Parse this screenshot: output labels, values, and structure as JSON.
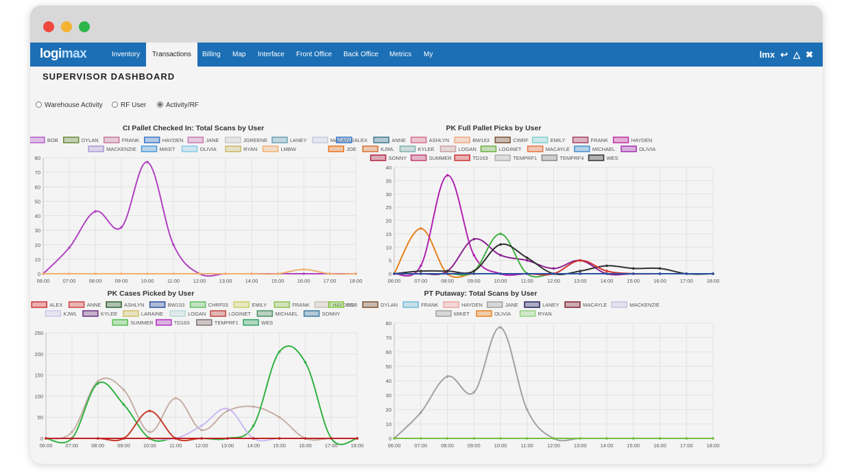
{
  "nav": {
    "logo_a": "logi",
    "logo_b": "max",
    "items": [
      "Inventory",
      "Transactions",
      "Billing",
      "Map",
      "Interface",
      "Front Office",
      "Back Office",
      "Metrics",
      "My"
    ],
    "active_index": 1,
    "user": "lmx",
    "icons": [
      "logout-icon",
      "warning-icon",
      "close-icon"
    ]
  },
  "page": {
    "title": "SUPERVISOR DASHBOARD",
    "radios": [
      {
        "label": "Warehouse Activity",
        "selected": false
      },
      {
        "label": "RF User",
        "selected": false
      },
      {
        "label": "Activity/RF",
        "selected": true
      }
    ]
  },
  "chart_data": [
    {
      "type": "line",
      "title": "CI   Pallet Checked In: Total Scans by User",
      "x": [
        "06:00",
        "07:00",
        "08:00",
        "09:00",
        "10:00",
        "11:00",
        "12:00",
        "13:00",
        "14:00",
        "15:00",
        "16:00",
        "17:00",
        "18:00"
      ],
      "ylim": [
        0,
        80
      ],
      "yticks": [
        0,
        10,
        20,
        30,
        40,
        50,
        60,
        70,
        80
      ],
      "legend": [
        "BOB",
        "DYLAN",
        "FRANK",
        "HAYDEN",
        "JANE",
        "JGREENE",
        "LANEY",
        "MACAYLE",
        "MACKENZIE",
        "MIKET",
        "OLIVIA",
        "RYAN",
        "LMBW"
      ],
      "legend_colors": [
        "#b45cc8",
        "#6b8a3a",
        "#c87a9a",
        "#3a78c8",
        "#c87ab0",
        "#c8c8c8",
        "#6aa0b8",
        "#c8c8e0",
        "#a898d8",
        "#4a98d8",
        "#88c8e8",
        "#c8b868",
        "#f0b070"
      ],
      "series": [
        {
          "name": "BOB",
          "color": "#b040c0",
          "values": [
            0,
            18,
            43,
            32,
            77,
            20,
            0,
            0,
            0,
            0,
            0,
            0,
            0
          ]
        },
        {
          "name": "LMBW",
          "color": "#f0b070",
          "values": [
            0,
            0,
            0,
            0,
            0,
            0,
            0,
            0,
            0,
            0,
            3,
            0,
            0
          ]
        }
      ]
    },
    {
      "type": "line",
      "title": "PK Full Pallet Picks by User",
      "x": [
        "06:00",
        "07:00",
        "08:00",
        "09:00",
        "10:00",
        "11:00",
        "12:00",
        "13:00",
        "14:00",
        "15:00",
        "16:00",
        "17:00",
        "18:00"
      ],
      "ylim": [
        0,
        40
      ],
      "yticks": [
        0,
        5,
        10,
        15,
        20,
        25,
        30,
        35,
        40
      ],
      "legend": [
        "ALEX",
        "ANNE",
        "ASHLYN",
        "BW163",
        "CWRF",
        "EMILY",
        "FRANK",
        "HAYDEN",
        "JOE",
        "KJWL",
        "KYLEE",
        "LOGAN",
        "LOGINET",
        "MACAYLE",
        "MICHAEL",
        "OLIVIA",
        "SONNY",
        "SUMMER",
        "TD163",
        "TEMPRF1",
        "TEMPRF4",
        "WES"
      ],
      "legend_colors": [
        "#3a78c8",
        "#3a7890",
        "#d87090",
        "#f0a880",
        "#7a5030",
        "#80d0d0",
        "#a84060",
        "#c030a0",
        "#e8701a",
        "#d87030",
        "#80b0b0",
        "#c8a0a0",
        "#6ab040",
        "#e87040",
        "#4090d0",
        "#a030b0",
        "#b02040",
        "#c04070",
        "#d03030",
        "#b0b0b0",
        "#888888",
        "#303030"
      ],
      "series": [
        {
          "name": "JOE",
          "color": "#e8801a",
          "values": [
            0,
            17,
            0,
            0,
            0,
            0,
            0,
            0,
            0,
            0,
            0,
            0,
            0
          ]
        },
        {
          "name": "HAYDEN",
          "color": "#b020b0",
          "values": [
            0,
            3,
            37,
            7,
            0,
            0,
            0,
            0,
            0,
            0,
            0,
            0,
            0
          ]
        },
        {
          "name": "OLIVIA",
          "color": "#8a2090",
          "values": [
            0,
            0,
            1,
            13,
            7,
            5,
            2,
            5,
            0,
            0,
            0,
            0,
            0
          ]
        },
        {
          "name": "LOGINET",
          "color": "#40b040",
          "values": [
            0,
            0,
            0,
            1,
            15,
            0,
            0,
            0,
            0,
            0,
            0,
            0,
            0
          ]
        },
        {
          "name": "WES",
          "color": "#303030",
          "values": [
            0,
            1,
            1,
            1,
            11,
            6,
            0,
            1,
            3,
            2,
            2,
            0,
            0
          ]
        },
        {
          "name": "TD163",
          "color": "#d03030",
          "values": [
            0,
            0,
            0,
            0,
            0,
            0,
            0,
            5,
            1,
            0,
            0,
            0,
            0
          ]
        },
        {
          "name": "ALEX",
          "color": "#2a4fa0",
          "values": [
            0,
            0,
            0,
            0,
            0,
            0,
            0,
            0,
            0,
            0,
            0,
            0,
            0
          ]
        }
      ]
    },
    {
      "type": "line",
      "title": "PK Cases Picked by User",
      "x": [
        "06:00",
        "07:00",
        "08:00",
        "09:00",
        "10:00",
        "11:00",
        "12:00",
        "13:00",
        "14:00",
        "15:00",
        "16:00",
        "17:00",
        "18:00"
      ],
      "ylim": [
        0,
        250
      ],
      "yticks": [
        0,
        50,
        100,
        150,
        200,
        250
      ],
      "legend": [
        "ALEX",
        "ANNE",
        "ASHLYN",
        "BW153",
        "CHRF03",
        "EMILY",
        "FRANK",
        "HAYDEN",
        "KJWL",
        "KYLEE",
        "LARAINE",
        "LOGAN",
        "LOGINET",
        "MICHAEL",
        "SONNY",
        "SUMMER",
        "TD163",
        "TEMPRF1",
        "WES"
      ],
      "legend_colors": [
        "#d03030",
        "#d04040",
        "#2a6030",
        "#2a4fa0",
        "#60c060",
        "#c8d060",
        "#90c050",
        "#c8c0b8",
        "#c8c8e8",
        "#6a3080",
        "#d0c060",
        "#b8d8d8",
        "#c04040",
        "#4a9060",
        "#3a78a0",
        "#50c050",
        "#b030c0",
        "#807070",
        "#30a060"
      ],
      "series": [
        {
          "name": "HAYDEN",
          "color": "#c4aea4",
          "values": [
            0,
            15,
            135,
            115,
            15,
            95,
            20,
            65,
            75,
            50,
            0,
            0,
            0
          ]
        },
        {
          "name": "SUMMER",
          "color": "#30b040",
          "values": [
            0,
            0,
            130,
            80,
            0,
            0,
            0,
            0,
            30,
            205,
            180,
            0,
            0
          ]
        },
        {
          "name": "ANNE",
          "color": "#c83a2a",
          "values": [
            0,
            0,
            0,
            0,
            65,
            0,
            0,
            0,
            0,
            0,
            0,
            0,
            0
          ]
        },
        {
          "name": "KJWL",
          "color": "#c8b8f0",
          "values": [
            0,
            0,
            0,
            0,
            0,
            0,
            30,
            70,
            0,
            0,
            0,
            0,
            0
          ]
        },
        {
          "name": "ALEX",
          "color": "#c02020",
          "values": [
            0,
            0,
            0,
            0,
            0,
            0,
            0,
            0,
            0,
            0,
            0,
            0,
            0
          ]
        }
      ]
    },
    {
      "type": "line",
      "title": "PT   Putaway: Total Scans by User",
      "x": [
        "06:00",
        "07:00",
        "08:00",
        "09:00",
        "10:00",
        "11:00",
        "12:00",
        "13:00",
        "14:00",
        "15:00",
        "16:00",
        "17:00",
        "18:00"
      ],
      "ylim": [
        0,
        80
      ],
      "yticks": [
        0,
        10,
        20,
        30,
        40,
        50,
        60,
        70,
        80
      ],
      "legend": [
        "BOB",
        "DYLAN",
        "FRANK",
        "HAYDEN",
        "JANE",
        "LANEY",
        "MACAYLE",
        "MACKENZIE",
        "MIKET",
        "OLIVIA",
        "RYAN"
      ],
      "legend_colors": [
        "#80c840",
        "#7a5030",
        "#70b8d8",
        "#f0a0a0",
        "#a0a0a0",
        "#202060",
        "#802030",
        "#c8c0e0",
        "#a0a0a0",
        "#e8801a",
        "#90d080"
      ],
      "series": [
        {
          "name": "JANE",
          "color": "#a0a0a0",
          "values": [
            0,
            18,
            43,
            32,
            77,
            20,
            0,
            0,
            0,
            0,
            0,
            0,
            0
          ]
        },
        {
          "name": "BOB",
          "color": "#70c040",
          "values": [
            0,
            0,
            0,
            0,
            0,
            0,
            0,
            0,
            0,
            0,
            0,
            0,
            0
          ]
        }
      ]
    }
  ]
}
